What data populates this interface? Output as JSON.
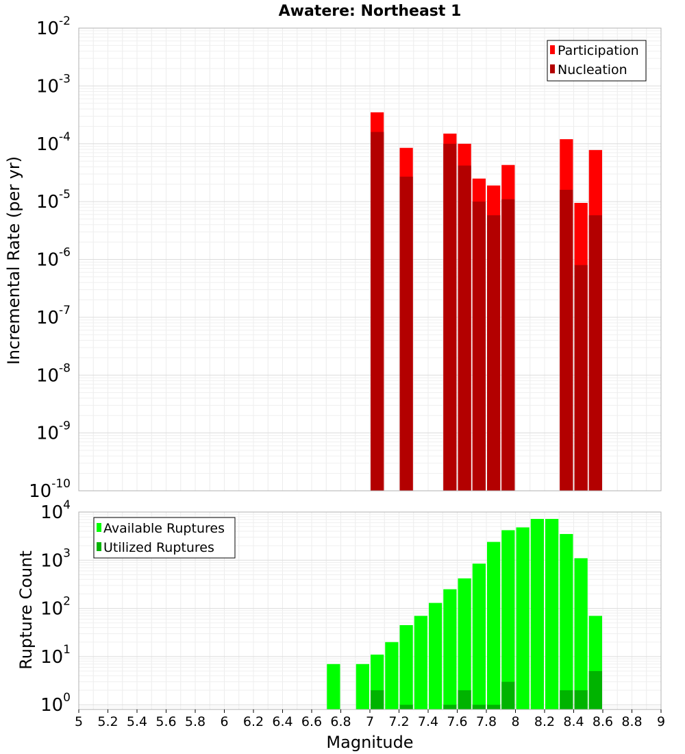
{
  "chart_data": [
    {
      "type": "bar",
      "title": "Awatere: Northeast 1",
      "xlabel": "",
      "ylabel": "Incremental Rate (per yr)",
      "yscale": "log",
      "ylim": [
        1e-10,
        0.01
      ],
      "xlim": [
        5,
        9
      ],
      "grid": true,
      "legend_position": "top-right",
      "y_ticks": [
        {
          "base": "10",
          "exp": "-10"
        },
        {
          "base": "10",
          "exp": "-9"
        },
        {
          "base": "10",
          "exp": "-8"
        },
        {
          "base": "10",
          "exp": "-7"
        },
        {
          "base": "10",
          "exp": "-6"
        },
        {
          "base": "10",
          "exp": "-5"
        },
        {
          "base": "10",
          "exp": "-4"
        },
        {
          "base": "10",
          "exp": "-3"
        },
        {
          "base": "10",
          "exp": "-2"
        }
      ],
      "series": [
        {
          "name": "Participation",
          "color": "#ff0000",
          "x": [
            7.05,
            7.25,
            7.55,
            7.65,
            7.75,
            7.85,
            7.95,
            8.35,
            8.45,
            8.55
          ],
          "values": [
            0.00035,
            8.5e-05,
            0.00015,
            0.0001,
            2.5e-05,
            1.9e-05,
            4.3e-05,
            0.00012,
            9.5e-06,
            7.8e-05
          ]
        },
        {
          "name": "Nucleation",
          "color": "#b30000",
          "x": [
            7.05,
            7.25,
            7.55,
            7.65,
            7.75,
            7.85,
            7.95,
            8.35,
            8.45,
            8.55
          ],
          "values": [
            0.00016,
            2.7e-05,
            0.0001,
            4.2e-05,
            1e-05,
            5.8e-06,
            1.1e-05,
            1.6e-05,
            8e-07,
            5.8e-06
          ]
        }
      ]
    },
    {
      "type": "bar",
      "title": "",
      "xlabel": "Magnitude",
      "ylabel": "Rupture Count",
      "yscale": "log",
      "ylim": [
        0.8,
        10000
      ],
      "xlim": [
        5,
        9
      ],
      "grid": true,
      "legend_position": "top-left",
      "x_ticks": [
        "5",
        "5.2",
        "5.4",
        "5.6",
        "5.8",
        "6",
        "6.2",
        "6.4",
        "6.6",
        "6.8",
        "7",
        "7.2",
        "7.4",
        "7.6",
        "7.8",
        "8",
        "8.2",
        "8.4",
        "8.6",
        "8.8",
        "9"
      ],
      "y_ticks": [
        {
          "base": "10",
          "exp": "0"
        },
        {
          "base": "10",
          "exp": "1"
        },
        {
          "base": "10",
          "exp": "2"
        },
        {
          "base": "10",
          "exp": "3"
        },
        {
          "base": "10",
          "exp": "4"
        }
      ],
      "series": [
        {
          "name": "Available Ruptures",
          "color": "#00ff00",
          "x": [
            6.75,
            6.95,
            7.05,
            7.15,
            7.25,
            7.35,
            7.45,
            7.55,
            7.65,
            7.75,
            7.85,
            7.95,
            8.05,
            8.15,
            8.25,
            8.35,
            8.45,
            8.55
          ],
          "values": [
            7,
            7,
            11,
            20,
            45,
            70,
            130,
            250,
            420,
            850,
            2400,
            4200,
            4800,
            7200,
            7200,
            3500,
            1100,
            70
          ]
        },
        {
          "name": "Utilized Ruptures",
          "color": "#00b300",
          "x": [
            7.05,
            7.25,
            7.55,
            7.65,
            7.75,
            7.85,
            7.95,
            8.35,
            8.45,
            8.55
          ],
          "values": [
            2,
            1,
            1,
            2,
            1,
            1,
            3,
            2,
            2,
            5
          ]
        }
      ]
    }
  ]
}
